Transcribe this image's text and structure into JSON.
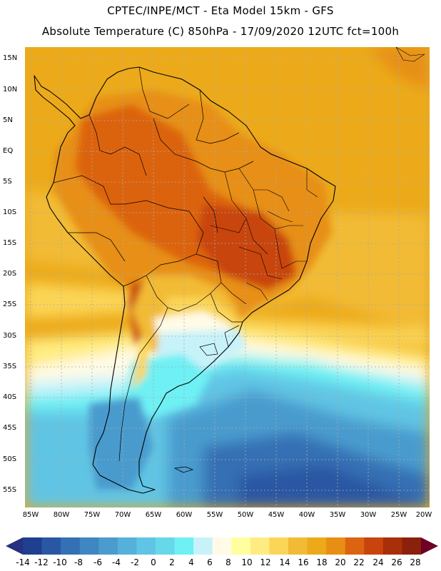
{
  "header": {
    "line1": "CPTEC/INPE/MCT -   Eta Model 15km - GFS",
    "line2": "Absolute Temperature (C) 850hPa - 17/09/2020 12UTC fct=100h"
  },
  "axes": {
    "lat_labels": [
      "15N",
      "10N",
      "5N",
      "EQ",
      "5S",
      "10S",
      "15S",
      "20S",
      "25S",
      "30S",
      "35S",
      "40S",
      "45S",
      "50S",
      "55S"
    ],
    "lon_labels": [
      "85W",
      "80W",
      "75W",
      "70W",
      "65W",
      "60W",
      "55W",
      "50W",
      "45W",
      "40W",
      "35W",
      "30W",
      "25W",
      "20W"
    ]
  },
  "colorbar": {
    "labels": [
      "-14",
      "-12",
      "-10",
      "-8",
      "-6",
      "-4",
      "-2",
      "0",
      "2",
      "4",
      "6",
      "8",
      "10",
      "12",
      "14",
      "16",
      "18",
      "20",
      "22",
      "24",
      "26",
      "28"
    ],
    "colors": [
      "#1f3f8f",
      "#2a57a3",
      "#3470b4",
      "#3f86c2",
      "#4a9bce",
      "#55b0da",
      "#60c5e4",
      "#66d8ea",
      "#6ef0f4",
      "#c8f2fa",
      "#fffbe6",
      "#ffff9f",
      "#ffec80",
      "#fbd557",
      "#f2bb35",
      "#ecaa1a",
      "#e78f14",
      "#dc6410",
      "#c8440c",
      "#a82f0a",
      "#8a210c"
    ],
    "under_color": "#28317f",
    "over_color": "#6e0025"
  }
}
